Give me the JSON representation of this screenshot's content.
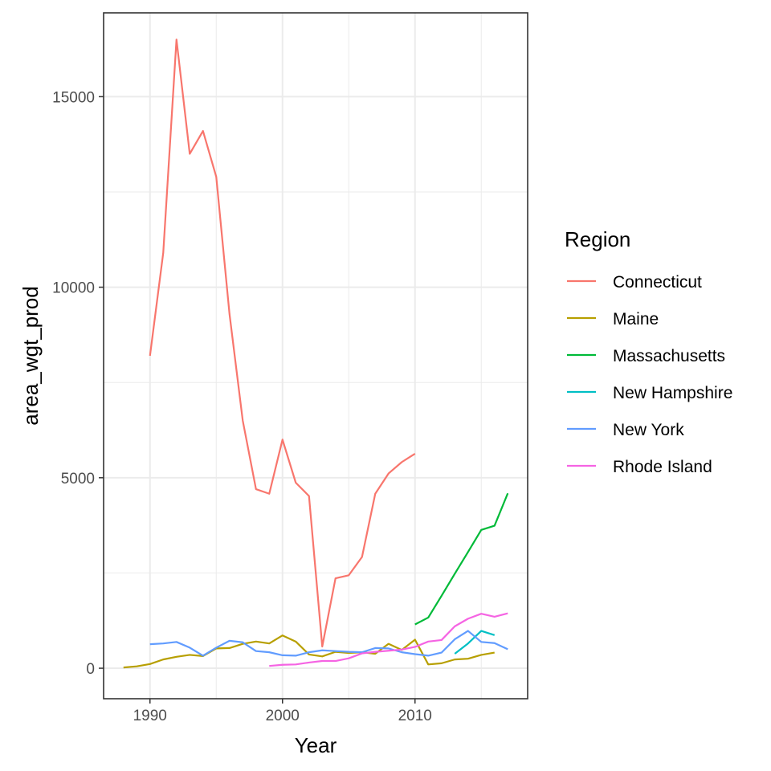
{
  "chart_data": {
    "type": "line",
    "xlabel": "Year",
    "ylabel": "area_wgt_prod",
    "xlim": [
      1986.5,
      2018.5
    ],
    "ylim": [
      -800,
      17200
    ],
    "x_ticks": [
      1990,
      2000,
      2010
    ],
    "y_ticks": [
      0,
      5000,
      10000,
      15000
    ],
    "x_minor": [
      1995,
      2005,
      2015
    ],
    "y_minor": [
      2500,
      7500,
      12500
    ],
    "grid": true,
    "legend": {
      "title": "Region",
      "placement": "right"
    },
    "series": [
      {
        "name": "Connecticut",
        "color": "#F8766D",
        "x": [
          1990,
          1991,
          1992,
          1993,
          1994,
          1995,
          1996,
          1997,
          1998,
          1999,
          2000,
          2001,
          2002,
          2003,
          2004,
          2005,
          2006,
          2007,
          2008,
          2009,
          2010
        ],
        "y": [
          8200,
          10900,
          16500,
          13500,
          14100,
          12900,
          9300,
          6500,
          4700,
          4580,
          6000,
          4870,
          4520,
          570,
          2360,
          2440,
          2920,
          4580,
          5110,
          5410,
          5630
        ]
      },
      {
        "name": "Maine",
        "color": "#B79F00",
        "x": [
          1988,
          1989,
          1990,
          1991,
          1992,
          1993,
          1994,
          1995,
          1996,
          1997,
          1998,
          1999,
          2000,
          2001,
          2002,
          2003,
          2004,
          2005,
          2006,
          2007,
          2008,
          2009,
          2010,
          2011,
          2012,
          2013,
          2014,
          2015,
          2016
        ],
        "y": [
          20,
          50,
          110,
          230,
          300,
          350,
          320,
          520,
          530,
          640,
          700,
          650,
          860,
          700,
          360,
          310,
          430,
          400,
          420,
          380,
          640,
          480,
          750,
          100,
          130,
          230,
          250,
          350,
          410
        ]
      },
      {
        "name": "Massachusetts",
        "color": "#00BA38",
        "x": [
          2010,
          2011,
          2012,
          2013,
          2014,
          2015,
          2016,
          2017
        ],
        "y": [
          1150,
          1330,
          1900,
          2480,
          3050,
          3630,
          3740,
          4590
        ]
      },
      {
        "name": "New Hampshire",
        "color": "#00BFC4",
        "x": [
          2013,
          2014,
          2015,
          2016
        ],
        "y": [
          380,
          650,
          980,
          870
        ]
      },
      {
        "name": "New York",
        "color": "#619CFF",
        "x": [
          1990,
          1991,
          1992,
          1993,
          1994,
          1995,
          1996,
          1997,
          1998,
          1999,
          2000,
          2001,
          2002,
          2003,
          2004,
          2005,
          2006,
          2007,
          2008,
          2009,
          2010,
          2011,
          2012,
          2013,
          2014,
          2015,
          2016,
          2017
        ],
        "y": [
          630,
          650,
          690,
          540,
          330,
          540,
          720,
          680,
          450,
          420,
          340,
          330,
          420,
          470,
          450,
          430,
          420,
          530,
          520,
          420,
          370,
          330,
          410,
          760,
          980,
          690,
          660,
          500
        ]
      },
      {
        "name": "Rhode Island",
        "color": "#F564E3",
        "x": [
          1999,
          2000,
          2001,
          2002,
          2003,
          2004,
          2005,
          2006,
          2007,
          2008,
          2009,
          2010,
          2011,
          2012,
          2013,
          2014,
          2015,
          2016,
          2017
        ],
        "y": [
          60,
          90,
          100,
          150,
          190,
          190,
          260,
          390,
          430,
          460,
          490,
          560,
          700,
          740,
          1100,
          1300,
          1430,
          1350,
          1440
        ]
      }
    ]
  }
}
